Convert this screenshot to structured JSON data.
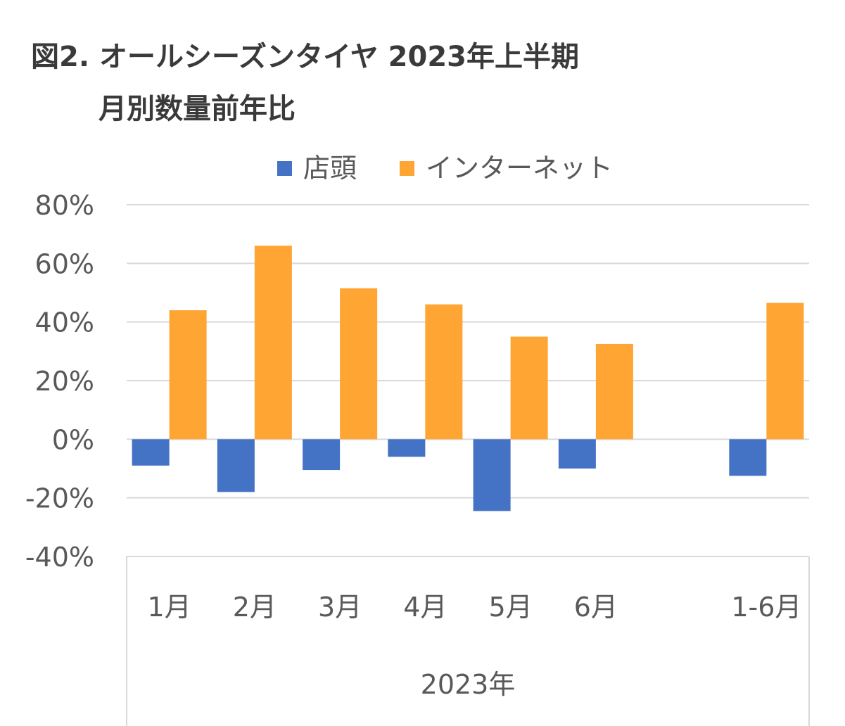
{
  "title": {
    "line1": "図2. オールシーズンタイヤ 2023年上半期",
    "line2": "月別数量前年比"
  },
  "chart_data": {
    "type": "bar",
    "categories": [
      "1月",
      "2月",
      "3月",
      "4月",
      "5月",
      "6月",
      "",
      "1-6月"
    ],
    "group_label": "2023年",
    "series": [
      {
        "name": "店頭",
        "color": "#4472c4",
        "values": [
          -9,
          -18,
          -10.5,
          -6,
          -24.5,
          -10,
          null,
          -12.5
        ]
      },
      {
        "name": "インターネット",
        "color": "#ffa533",
        "values": [
          44,
          66,
          51.5,
          46,
          35,
          32.5,
          null,
          46.5
        ]
      }
    ],
    "ylim": [
      -40,
      80
    ],
    "yticks": [
      80,
      60,
      40,
      20,
      0,
      -20,
      -40
    ],
    "ytick_labels": [
      "80%",
      "60%",
      "40%",
      "20%",
      "0%",
      "-20%",
      "-40%"
    ],
    "grid": true,
    "legend_position": "top"
  }
}
